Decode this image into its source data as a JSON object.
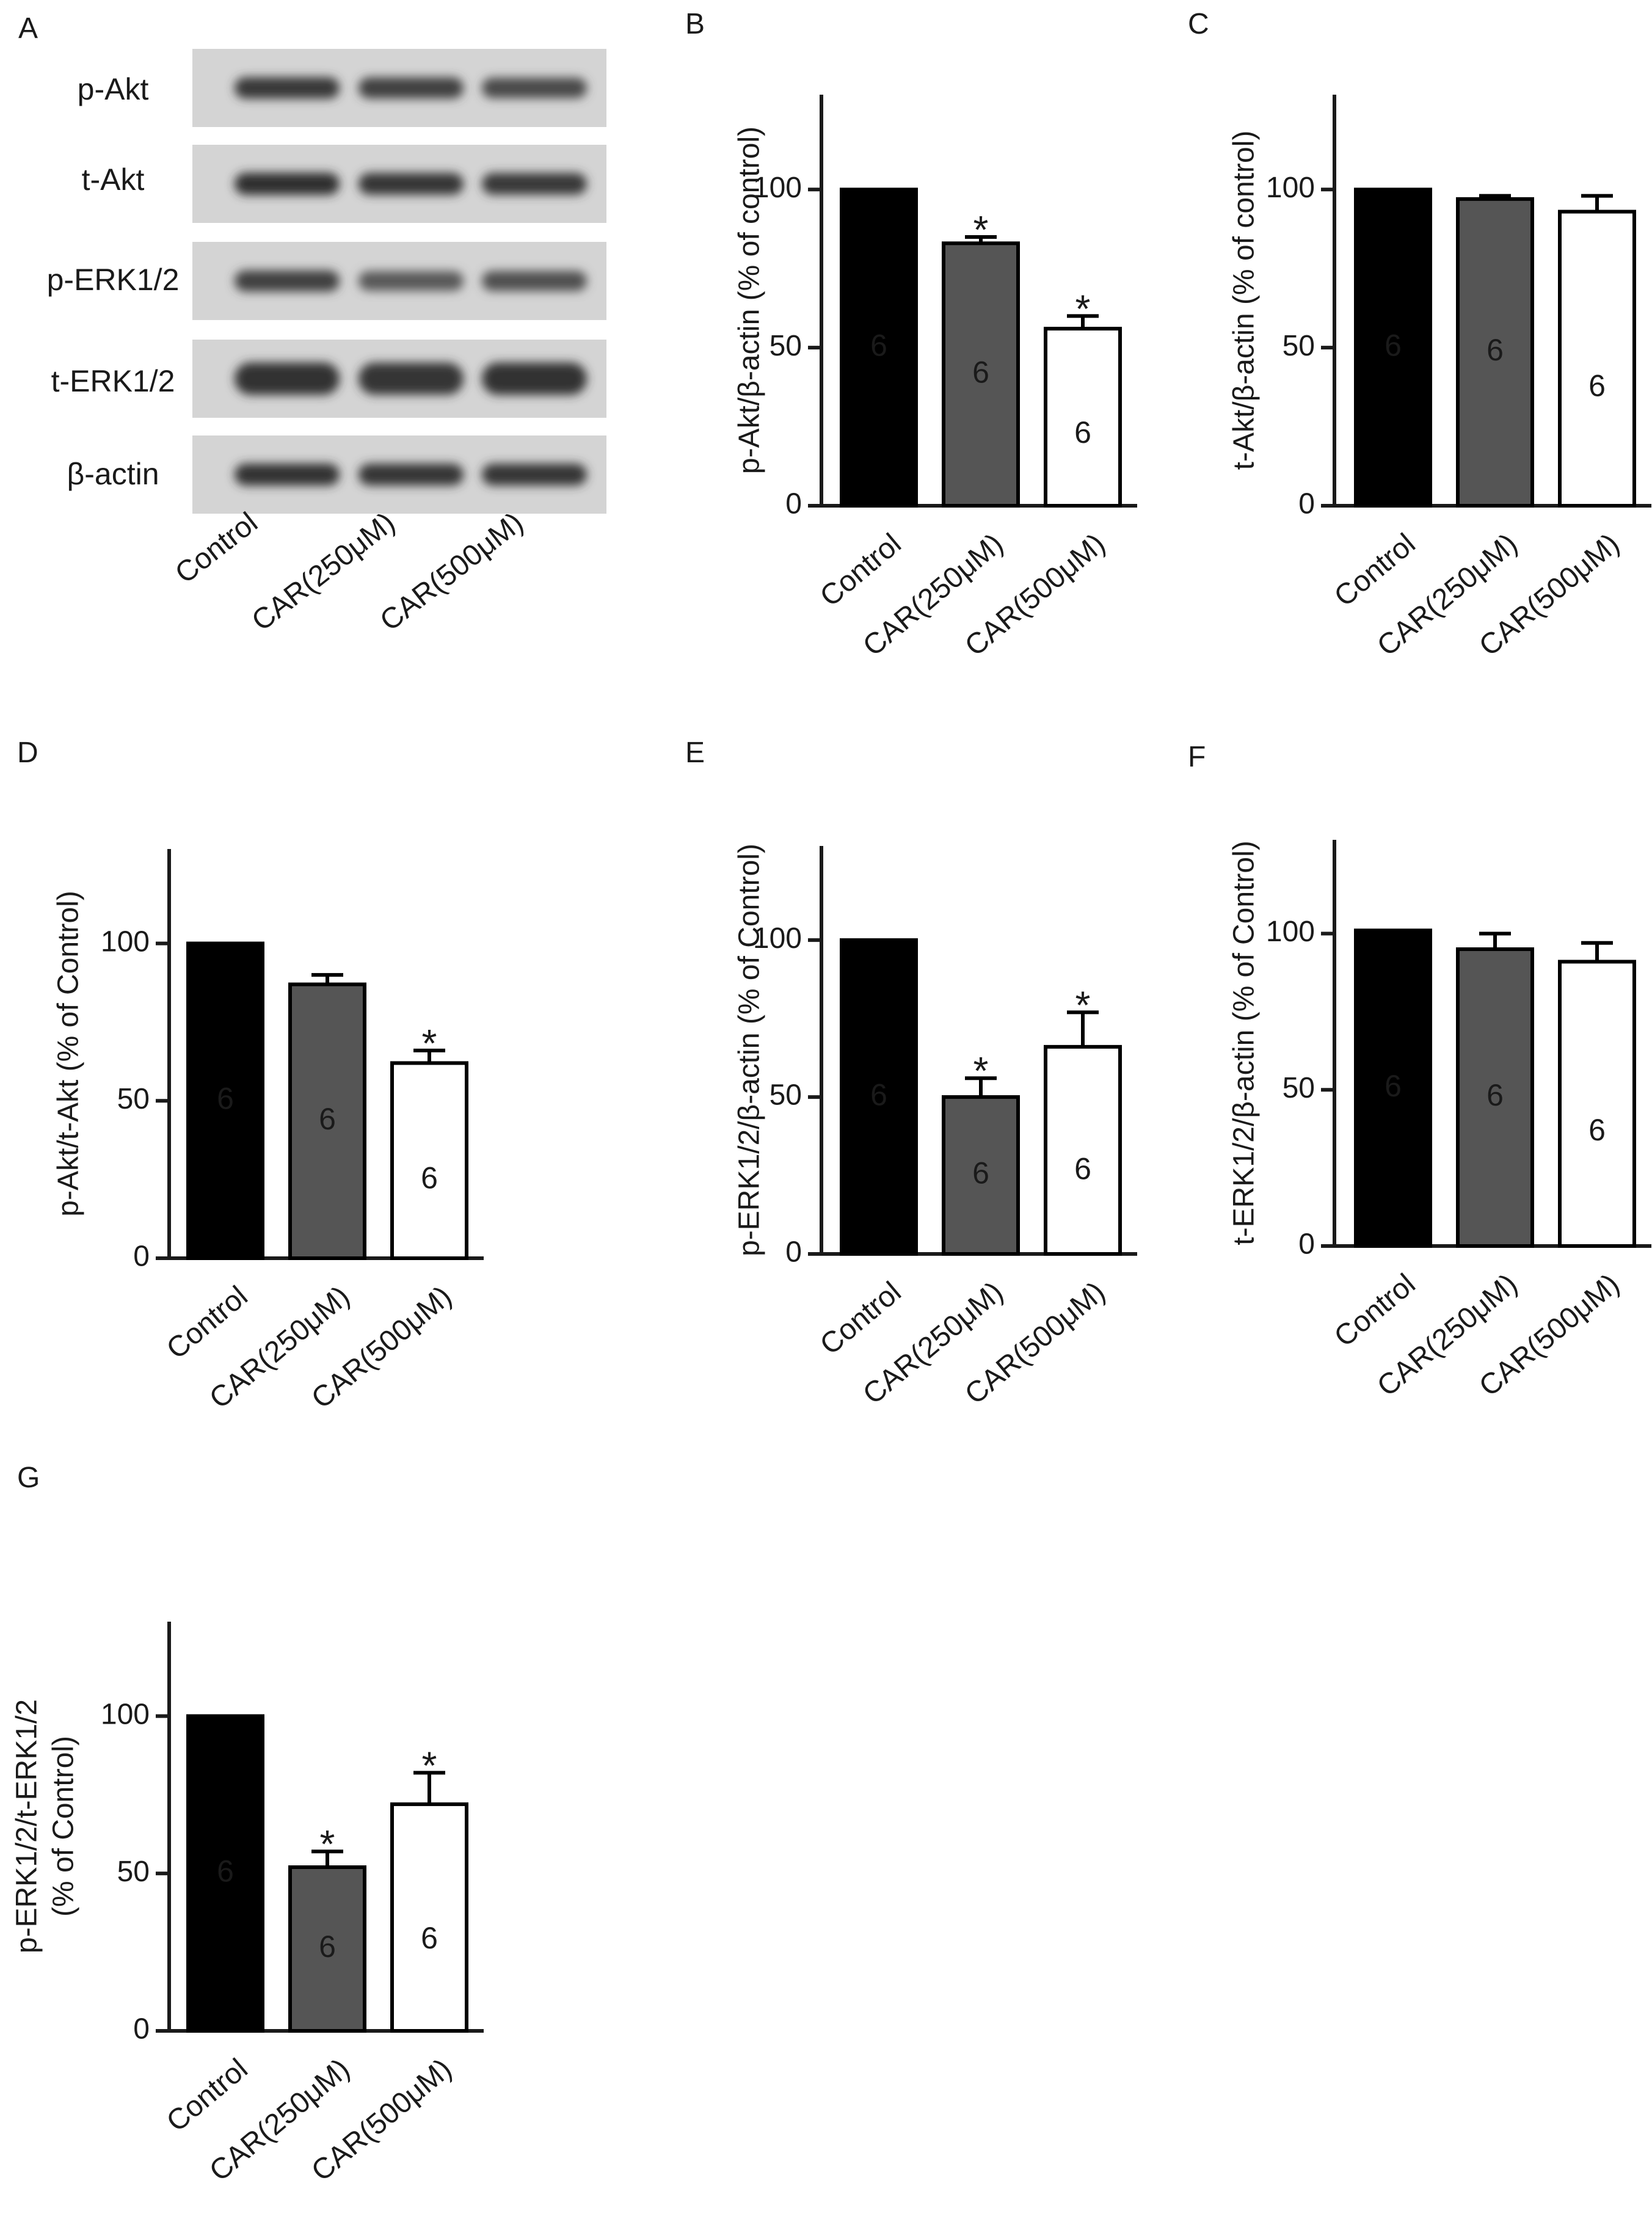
{
  "panel_a": {
    "letter": "A",
    "bands": [
      "p-Akt",
      "t-Akt",
      "p-ERK1/2",
      "t-ERK1/2",
      "β-actin"
    ],
    "lanes": [
      "Control",
      "CAR(250μM)",
      "CAR(500μM)"
    ],
    "band_intensity": [
      [
        0.85,
        0.8,
        0.72
      ],
      [
        0.92,
        0.88,
        0.86
      ],
      [
        0.8,
        0.62,
        0.68
      ],
      [
        0.9,
        0.88,
        0.9
      ],
      [
        0.9,
        0.88,
        0.88
      ]
    ]
  },
  "colors": {
    "control": "#000000",
    "car250": "#555555",
    "car500": "#ffffff",
    "axis": "#1a1a1a"
  },
  "chart_data": [
    {
      "type": "bar",
      "letter": "B",
      "ylabel": "p-Akt/β-actin (% of control)",
      "categories": [
        "Control",
        "CAR(250μM)",
        "CAR(500μM)"
      ],
      "values": [
        100,
        83,
        56
      ],
      "errors": [
        0,
        2,
        4
      ],
      "n_labels": [
        "6",
        "6",
        "6"
      ],
      "sig": [
        "",
        "*",
        "*"
      ],
      "yticks": [
        0,
        50,
        100
      ],
      "ylim": [
        0,
        130
      ]
    },
    {
      "type": "bar",
      "letter": "C",
      "ylabel": "t-Akt/β-actin (% of control)",
      "categories": [
        "Control",
        "CAR(250μM)",
        "CAR(500μM)"
      ],
      "values": [
        100,
        97,
        93
      ],
      "errors": [
        0,
        1,
        5
      ],
      "n_labels": [
        "6",
        "6",
        "6"
      ],
      "sig": [
        "",
        "",
        ""
      ],
      "yticks": [
        0,
        50,
        100
      ],
      "ylim": [
        0,
        130
      ]
    },
    {
      "type": "bar",
      "letter": "D",
      "ylabel": "p-Akt/t-Akt (% of Control)",
      "categories": [
        "Control",
        "CAR(250μM)",
        "CAR(500μM)"
      ],
      "values": [
        100,
        87,
        62
      ],
      "errors": [
        0,
        3,
        4
      ],
      "n_labels": [
        "6",
        "6",
        "6"
      ],
      "sig": [
        "",
        "",
        "*"
      ],
      "yticks": [
        0,
        50,
        100
      ],
      "ylim": [
        0,
        130
      ]
    },
    {
      "type": "bar",
      "letter": "E",
      "ylabel": "p-ERK1/2/β-actin (% of Control)",
      "categories": [
        "Control",
        "CAR(250μM)",
        "CAR(500μM)"
      ],
      "values": [
        100,
        50,
        66
      ],
      "errors": [
        0,
        6,
        11
      ],
      "n_labels": [
        "6",
        "6",
        "6"
      ],
      "sig": [
        "",
        "*",
        "*"
      ],
      "yticks": [
        0,
        50,
        100
      ],
      "ylim": [
        0,
        130
      ]
    },
    {
      "type": "bar",
      "letter": "F",
      "ylabel": "t-ERK1/2/β-actin (% of Control)",
      "categories": [
        "Control",
        "CAR(250μM)",
        "CAR(500μM)"
      ],
      "values": [
        101,
        95,
        91
      ],
      "errors": [
        0,
        5,
        6
      ],
      "n_labels": [
        "6",
        "6",
        "6"
      ],
      "sig": [
        "",
        "",
        ""
      ],
      "yticks": [
        0,
        50,
        100
      ],
      "ylim": [
        0,
        130
      ]
    },
    {
      "type": "bar",
      "letter": "G",
      "ylabel": "p-ERK1/2/t-ERK1/2",
      "ylabel2": "(% of Control)",
      "categories": [
        "Control",
        "CAR(250μM)",
        "CAR(500μM)"
      ],
      "values": [
        100,
        52,
        72
      ],
      "errors": [
        0,
        5,
        10
      ],
      "n_labels": [
        "6",
        "6",
        "6"
      ],
      "sig": [
        "",
        "*",
        "*"
      ],
      "yticks": [
        0,
        50,
        100
      ],
      "ylim": [
        0,
        130
      ]
    }
  ]
}
